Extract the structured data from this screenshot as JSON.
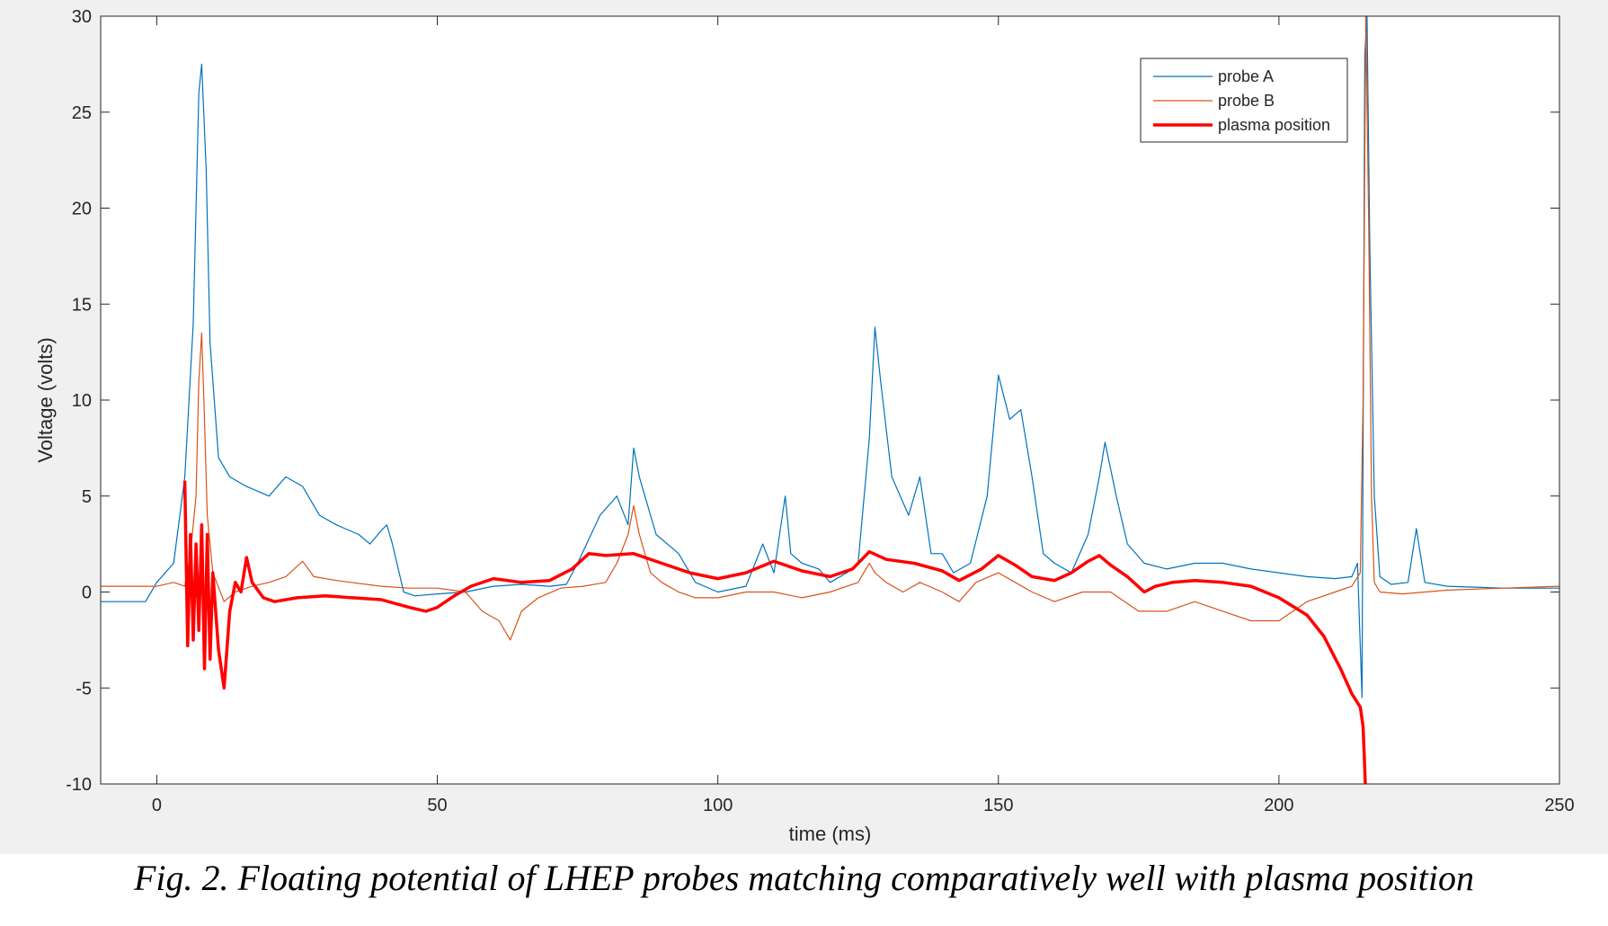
{
  "caption": "Fig. 2. Floating potential of LHEP probes matching comparatively well with plasma position",
  "chart_data": {
    "type": "line",
    "xlabel": "time (ms)",
    "ylabel": "Voltage (volts)",
    "xlim": [
      -10,
      250
    ],
    "ylim": [
      -10,
      30
    ],
    "xticks": [
      0,
      50,
      100,
      150,
      200,
      250
    ],
    "yticks": [
      -10,
      -5,
      0,
      5,
      10,
      15,
      20,
      25,
      30
    ],
    "legend_position": "top-right",
    "grid": false,
    "series": [
      {
        "name": "probe A",
        "color": "#0072BD",
        "width": 1.2,
        "points": [
          [
            -10,
            -0.5
          ],
          [
            -2,
            -0.5
          ],
          [
            0,
            0.5
          ],
          [
            3,
            1.5
          ],
          [
            5,
            6
          ],
          [
            6.5,
            14
          ],
          [
            7.5,
            26
          ],
          [
            8,
            27.5
          ],
          [
            8.8,
            22
          ],
          [
            9.5,
            13
          ],
          [
            11,
            7
          ],
          [
            13,
            6
          ],
          [
            16,
            5.5
          ],
          [
            20,
            5
          ],
          [
            23,
            6
          ],
          [
            26,
            5.5
          ],
          [
            29,
            4
          ],
          [
            32,
            3.5
          ],
          [
            36,
            3
          ],
          [
            38,
            2.5
          ],
          [
            40,
            3.2
          ],
          [
            41,
            3.5
          ],
          [
            42,
            2.5
          ],
          [
            44,
            0
          ],
          [
            46,
            -0.2
          ],
          [
            50,
            -0.1
          ],
          [
            55,
            0
          ],
          [
            60,
            0.3
          ],
          [
            65,
            0.4
          ],
          [
            70,
            0.3
          ],
          [
            73,
            0.4
          ],
          [
            75,
            1.5
          ],
          [
            79,
            4
          ],
          [
            82,
            5
          ],
          [
            84,
            3.5
          ],
          [
            85,
            7.5
          ],
          [
            86,
            6
          ],
          [
            87,
            5
          ],
          [
            89,
            3
          ],
          [
            91,
            2.5
          ],
          [
            93,
            2
          ],
          [
            96,
            0.5
          ],
          [
            100,
            0
          ],
          [
            105,
            0.3
          ],
          [
            108,
            2.5
          ],
          [
            110,
            1
          ],
          [
            112,
            5
          ],
          [
            113,
            2
          ],
          [
            115,
            1.5
          ],
          [
            118,
            1.2
          ],
          [
            120,
            0.5
          ],
          [
            123,
            1
          ],
          [
            125,
            1.5
          ],
          [
            127,
            8
          ],
          [
            128,
            13.8
          ],
          [
            129,
            11
          ],
          [
            131,
            6
          ],
          [
            134,
            4
          ],
          [
            136,
            6
          ],
          [
            138,
            2
          ],
          [
            140,
            2
          ],
          [
            142,
            1
          ],
          [
            145,
            1.5
          ],
          [
            148,
            5
          ],
          [
            150,
            11.3
          ],
          [
            152,
            9
          ],
          [
            154,
            9.5
          ],
          [
            156,
            6
          ],
          [
            158,
            2
          ],
          [
            160,
            1.5
          ],
          [
            163,
            1
          ],
          [
            166,
            3
          ],
          [
            168,
            6
          ],
          [
            169,
            7.8
          ],
          [
            171,
            5
          ],
          [
            173,
            2.5
          ],
          [
            176,
            1.5
          ],
          [
            180,
            1.2
          ],
          [
            185,
            1.5
          ],
          [
            190,
            1.5
          ],
          [
            195,
            1.2
          ],
          [
            200,
            1
          ],
          [
            205,
            0.8
          ],
          [
            210,
            0.7
          ],
          [
            213,
            0.8
          ],
          [
            214,
            1.5
          ],
          [
            214.8,
            -5.5
          ],
          [
            215.3,
            28
          ],
          [
            215.7,
            30
          ],
          [
            216.2,
            18
          ],
          [
            217,
            5
          ],
          [
            218,
            0.8
          ],
          [
            220,
            0.4
          ],
          [
            223,
            0.5
          ],
          [
            224.5,
            3.3
          ],
          [
            226,
            0.5
          ],
          [
            230,
            0.3
          ],
          [
            240,
            0.2
          ],
          [
            250,
            0.2
          ]
        ]
      },
      {
        "name": "probe B",
        "color": "#D95319",
        "width": 1.2,
        "points": [
          [
            -10,
            0.3
          ],
          [
            0,
            0.3
          ],
          [
            3,
            0.5
          ],
          [
            5,
            0.3
          ],
          [
            6,
            2
          ],
          [
            7,
            5
          ],
          [
            7.5,
            11
          ],
          [
            8,
            13.5
          ],
          [
            8.5,
            9
          ],
          [
            9,
            4
          ],
          [
            10,
            1
          ],
          [
            12,
            -0.5
          ],
          [
            14,
            0
          ],
          [
            17,
            0.3
          ],
          [
            20,
            0.5
          ],
          [
            23,
            0.8
          ],
          [
            26,
            1.6
          ],
          [
            28,
            0.8
          ],
          [
            32,
            0.6
          ],
          [
            40,
            0.3
          ],
          [
            45,
            0.2
          ],
          [
            50,
            0.2
          ],
          [
            55,
            0
          ],
          [
            58,
            -1
          ],
          [
            61,
            -1.5
          ],
          [
            63,
            -2.5
          ],
          [
            65,
            -1
          ],
          [
            68,
            -0.3
          ],
          [
            72,
            0.2
          ],
          [
            76,
            0.3
          ],
          [
            80,
            0.5
          ],
          [
            82,
            1.5
          ],
          [
            84,
            3
          ],
          [
            85,
            4.5
          ],
          [
            86,
            3
          ],
          [
            88,
            1
          ],
          [
            90,
            0.5
          ],
          [
            93,
            0
          ],
          [
            96,
            -0.3
          ],
          [
            100,
            -0.3
          ],
          [
            105,
            0
          ],
          [
            110,
            0
          ],
          [
            115,
            -0.3
          ],
          [
            120,
            0
          ],
          [
            125,
            0.5
          ],
          [
            127,
            1.5
          ],
          [
            128,
            1
          ],
          [
            130,
            0.5
          ],
          [
            133,
            0
          ],
          [
            136,
            0.5
          ],
          [
            140,
            0
          ],
          [
            143,
            -0.5
          ],
          [
            146,
            0.5
          ],
          [
            150,
            1
          ],
          [
            153,
            0.5
          ],
          [
            156,
            0
          ],
          [
            160,
            -0.5
          ],
          [
            165,
            0
          ],
          [
            170,
            0
          ],
          [
            175,
            -1
          ],
          [
            180,
            -1
          ],
          [
            185,
            -0.5
          ],
          [
            190,
            -1
          ],
          [
            195,
            -1.5
          ],
          [
            200,
            -1.5
          ],
          [
            205,
            -0.5
          ],
          [
            210,
            0
          ],
          [
            213,
            0.3
          ],
          [
            214.5,
            1
          ],
          [
            215,
            10
          ],
          [
            215.5,
            30
          ],
          [
            216,
            19
          ],
          [
            216.5,
            5
          ],
          [
            217,
            0.5
          ],
          [
            218,
            0
          ],
          [
            222,
            -0.1
          ],
          [
            230,
            0.1
          ],
          [
            240,
            0.2
          ],
          [
            250,
            0.3
          ]
        ]
      },
      {
        "name": "plasma position",
        "color": "#FF0000",
        "width": 3.5,
        "points": [
          [
            5,
            5.8
          ],
          [
            5.5,
            -2.8
          ],
          [
            6,
            3
          ],
          [
            6.5,
            -2.5
          ],
          [
            7,
            2.5
          ],
          [
            7.5,
            -2
          ],
          [
            8,
            3.5
          ],
          [
            8.5,
            -4
          ],
          [
            9,
            3
          ],
          [
            9.5,
            -3.5
          ],
          [
            10,
            1
          ],
          [
            11,
            -3
          ],
          [
            12,
            -5
          ],
          [
            13,
            -1
          ],
          [
            14,
            0.5
          ],
          [
            15,
            0
          ],
          [
            16,
            1.8
          ],
          [
            17,
            0.5
          ],
          [
            19,
            -0.3
          ],
          [
            21,
            -0.5
          ],
          [
            25,
            -0.3
          ],
          [
            30,
            -0.2
          ],
          [
            40,
            -0.4
          ],
          [
            45,
            -0.8
          ],
          [
            48,
            -1
          ],
          [
            50,
            -0.8
          ],
          [
            53,
            -0.2
          ],
          [
            56,
            0.3
          ],
          [
            60,
            0.7
          ],
          [
            65,
            0.5
          ],
          [
            70,
            0.6
          ],
          [
            74,
            1.2
          ],
          [
            77,
            2
          ],
          [
            80,
            1.9
          ],
          [
            85,
            2
          ],
          [
            90,
            1.5
          ],
          [
            95,
            1
          ],
          [
            100,
            0.7
          ],
          [
            105,
            1
          ],
          [
            110,
            1.6
          ],
          [
            115,
            1.1
          ],
          [
            120,
            0.8
          ],
          [
            124,
            1.2
          ],
          [
            127,
            2.1
          ],
          [
            130,
            1.7
          ],
          [
            135,
            1.5
          ],
          [
            140,
            1.1
          ],
          [
            143,
            0.6
          ],
          [
            147,
            1.2
          ],
          [
            150,
            1.9
          ],
          [
            153,
            1.4
          ],
          [
            156,
            0.8
          ],
          [
            160,
            0.6
          ],
          [
            163,
            1
          ],
          [
            166,
            1.6
          ],
          [
            168,
            1.9
          ],
          [
            170,
            1.4
          ],
          [
            173,
            0.8
          ],
          [
            176,
            0
          ],
          [
            178,
            0.3
          ],
          [
            181,
            0.5
          ],
          [
            185,
            0.6
          ],
          [
            190,
            0.5
          ],
          [
            195,
            0.3
          ],
          [
            200,
            -0.3
          ],
          [
            205,
            -1.2
          ],
          [
            208,
            -2.3
          ],
          [
            211,
            -4
          ],
          [
            213,
            -5.3
          ],
          [
            214.5,
            -6
          ],
          [
            215,
            -7
          ],
          [
            215.2,
            -8.5
          ],
          [
            215.4,
            -10
          ]
        ]
      }
    ]
  }
}
